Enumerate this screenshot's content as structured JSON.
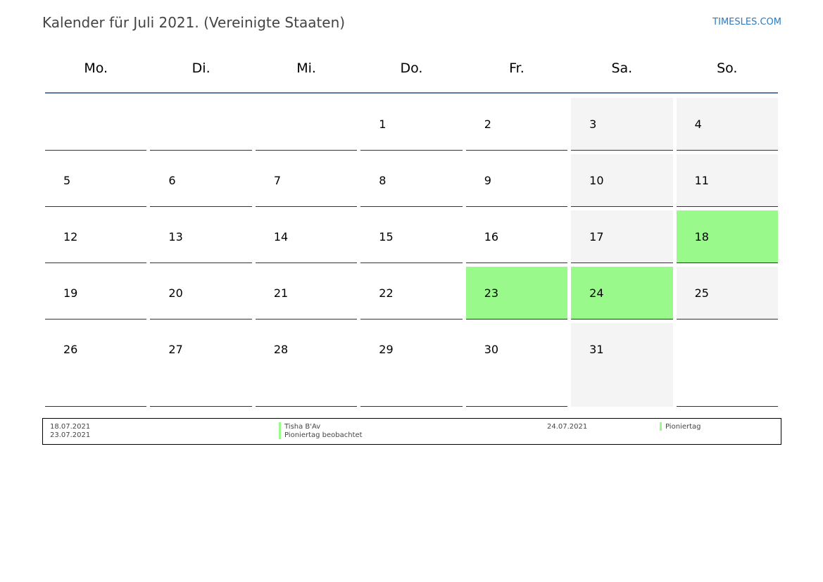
{
  "header": {
    "title": "Kalender für Juli 2021. (Vereinigte Staaten)",
    "brand": "TIMESLES.COM"
  },
  "weekdays": [
    "Mo.",
    "Di.",
    "Mi.",
    "Do.",
    "Fr.",
    "Sa.",
    "So."
  ],
  "colors": {
    "weekend": "#f4f4f4",
    "holiday": "#99fa8b",
    "header_line": "#5a7aa0"
  },
  "weeks": [
    [
      "",
      "",
      "",
      "1",
      "2",
      "3",
      "4"
    ],
    [
      "5",
      "6",
      "7",
      "8",
      "9",
      "10",
      "11"
    ],
    [
      "12",
      "13",
      "14",
      "15",
      "16",
      "17",
      "18"
    ],
    [
      "19",
      "20",
      "21",
      "22",
      "23",
      "24",
      "25"
    ],
    [
      "26",
      "27",
      "28",
      "29",
      "30",
      "31",
      ""
    ]
  ],
  "highlighted_days": [
    "18",
    "23",
    "24"
  ],
  "legend": [
    {
      "date": "18.07.2021",
      "name": "Tisha B'Av"
    },
    {
      "date": "23.07.2021",
      "name": "Pioniertag beobachtet"
    },
    {
      "date": "24.07.2021",
      "name": "Pioniertag"
    }
  ]
}
